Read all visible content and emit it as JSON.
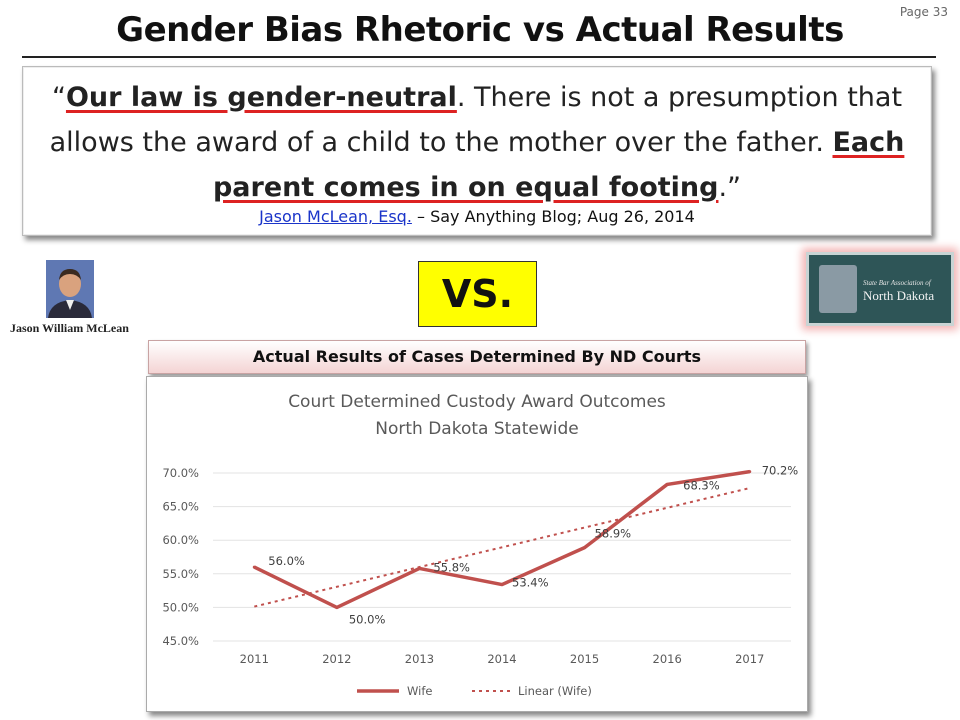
{
  "page_number": "Page 33",
  "title": "Gender Bias Rhetoric vs Actual Results",
  "quote": {
    "open_mark": "“",
    "part1": "Our law is gender-neutral",
    "part2": ". There is not a presumption that allows the award of a child to the mother over the father. ",
    "part3": "Each parent comes in on equal footing",
    "part4": ".”"
  },
  "citation": {
    "link_text": "Jason McLean, Esq.",
    "rest": " – Say Anything Blog; Aug 26, 2014"
  },
  "portrait_label": "Jason William McLean",
  "vs_label": "VS.",
  "logo": {
    "small_text": "State Bar Association of",
    "big_text": "North Dakota"
  },
  "section_header": "Actual Results of Cases Determined By ND Courts",
  "colors": {
    "series": "#c0504d",
    "vs_bg": "#ffff00",
    "link": "#1a34c9",
    "underline": "#d22222"
  },
  "chart_data": {
    "type": "line",
    "title": "Court Determined  Custody Award Outcomes",
    "subtitle": "North Dakota Statewide",
    "x": [
      "2011",
      "2012",
      "2013",
      "2014",
      "2015",
      "2016",
      "2017"
    ],
    "series": [
      {
        "name": "Wife",
        "values": [
          56.0,
          50.0,
          55.8,
          53.4,
          58.9,
          68.3,
          70.2
        ],
        "labels": [
          "56.0%",
          "50.0%",
          "55.8%",
          "53.4%",
          "58.9%",
          "68.3%",
          "70.2%"
        ]
      }
    ],
    "trendline": {
      "name": "Linear (Wife)",
      "type": "linear",
      "dashed": true
    },
    "y_ticks": [
      "45.0%",
      "50.0%",
      "55.0%",
      "60.0%",
      "65.0%",
      "70.0%"
    ],
    "ylim": [
      45.0,
      70.0
    ],
    "grid": true,
    "legend_position": "bottom"
  }
}
